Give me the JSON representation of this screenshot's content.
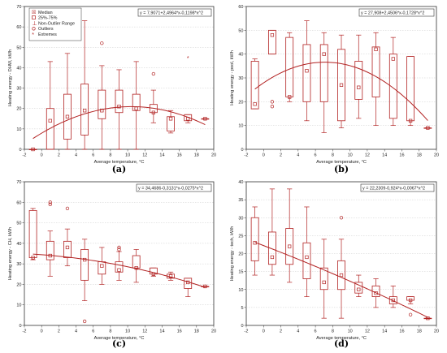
{
  "chart_data": [
    {
      "type": "box",
      "panel_label": "(a)",
      "xlabel": "Average temperature, °C",
      "ylabel": "Heating energy - DHW, kWh",
      "xlim": [
        -2,
        20
      ],
      "ylim": [
        0,
        70
      ],
      "xticks": [
        -2,
        0,
        2,
        4,
        6,
        8,
        10,
        12,
        14,
        16,
        18,
        20
      ],
      "yticks": [
        0,
        10,
        20,
        30,
        40,
        50,
        60,
        70
      ],
      "equation": "y = 7,9071+2,4964*x-0,1198*x^2",
      "fit": {
        "a": 7.9071,
        "b": 2.4964,
        "c": -0.1198,
        "x_range": [
          -1,
          19
        ]
      },
      "legend": [
        "Median",
        "25%-75%",
        "Non-Outlier Range",
        "Outliers",
        "Extremes"
      ],
      "boxes": [
        {
          "x": -1,
          "min": 0,
          "q1": 0,
          "median": 0,
          "q3": 0,
          "max": 0
        },
        {
          "x": 1,
          "min": 0,
          "q1": 0,
          "median": 14,
          "q3": 20,
          "max": 43
        },
        {
          "x": 3,
          "min": 0,
          "q1": 5,
          "median": 16,
          "q3": 27,
          "max": 47
        },
        {
          "x": 5,
          "min": 0,
          "q1": 7,
          "median": 19,
          "q3": 32,
          "max": 63
        },
        {
          "x": 7,
          "min": 0,
          "q1": 15,
          "median": 19,
          "q3": 29,
          "max": 41,
          "outliers": [
            52
          ]
        },
        {
          "x": 9,
          "min": 0,
          "q1": 18,
          "median": 21,
          "q3": 29,
          "max": 39
        },
        {
          "x": 11,
          "min": 0,
          "q1": 19,
          "median": 20,
          "q3": 27,
          "max": 43
        },
        {
          "x": 13,
          "min": 13,
          "q1": 18,
          "median": 18,
          "q3": 22,
          "max": 29,
          "outliers": [
            37
          ]
        },
        {
          "x": 15,
          "min": 8,
          "q1": 9,
          "median": 15,
          "q3": 16,
          "max": 19
        },
        {
          "x": 17,
          "min": 13,
          "q1": 14,
          "median": 15,
          "q3": 17,
          "max": 17,
          "extremes": [
            45
          ]
        },
        {
          "x": 19,
          "min": 15,
          "q1": 15,
          "median": 15,
          "q3": 15,
          "max": 15
        }
      ]
    },
    {
      "type": "box",
      "panel_label": "(b)",
      "xlabel": "Average temperature, °C",
      "ylabel": "Heating energy - pool, kWh",
      "xlim": [
        -2,
        20
      ],
      "ylim": [
        0,
        60
      ],
      "xticks": [
        -2,
        0,
        2,
        4,
        6,
        8,
        10,
        12,
        14,
        16,
        18,
        20
      ],
      "yticks": [
        0,
        10,
        20,
        30,
        40,
        50,
        60
      ],
      "equation": "y = 27,908+2,4506*x-0,1728*x^2",
      "fit": {
        "a": 27.908,
        "b": 2.4506,
        "c": -0.1728,
        "x_range": [
          -1,
          19
        ]
      },
      "boxes": [
        {
          "x": -1,
          "min": 17,
          "q1": 17,
          "median": 19,
          "q3": 37,
          "max": 38
        },
        {
          "x": 1,
          "min": 40,
          "q1": 40,
          "median": 48,
          "q3": 50,
          "max": 50,
          "outliers": [
            20,
            18
          ]
        },
        {
          "x": 3,
          "min": 20,
          "q1": 22,
          "median": 22,
          "q3": 47,
          "max": 49
        },
        {
          "x": 5,
          "min": 12,
          "q1": 20,
          "median": 33,
          "q3": 44,
          "max": 54
        },
        {
          "x": 7,
          "min": 7,
          "q1": 20,
          "median": 40,
          "q3": 44,
          "max": 49
        },
        {
          "x": 9,
          "min": 9,
          "q1": 12,
          "median": 27,
          "q3": 42,
          "max": 48
        },
        {
          "x": 11,
          "min": 13,
          "q1": 21,
          "median": 26,
          "q3": 37,
          "max": 48
        },
        {
          "x": 13,
          "min": 10,
          "q1": 22,
          "median": 42,
          "q3": 43,
          "max": 49
        },
        {
          "x": 15,
          "min": 10,
          "q1": 13,
          "median": 38,
          "q3": 40,
          "max": 47
        },
        {
          "x": 17,
          "min": 10,
          "q1": 12,
          "median": 12,
          "q3": 39,
          "max": 39
        },
        {
          "x": 19,
          "min": 9,
          "q1": 9,
          "median": 9,
          "q3": 9,
          "max": 9
        }
      ]
    },
    {
      "type": "box",
      "panel_label": "(c)",
      "xlabel": "Average temperature, °C",
      "ylabel": "Heating energy - CH, kWh",
      "xlim": [
        -2,
        20
      ],
      "ylim": [
        0,
        70
      ],
      "xticks": [
        -2,
        0,
        2,
        4,
        6,
        8,
        10,
        12,
        14,
        16,
        18,
        20
      ],
      "yticks": [
        0,
        10,
        20,
        30,
        40,
        50,
        60,
        70
      ],
      "equation": "y = 34,4686-0,3131*x-0,0275*x^2",
      "fit": {
        "a": 34.4686,
        "b": -0.3131,
        "c": -0.0275,
        "x_range": [
          -1,
          19
        ]
      },
      "boxes": [
        {
          "x": -1,
          "min": 32,
          "q1": 33,
          "median": 33,
          "q3": 56,
          "max": 57
        },
        {
          "x": 1,
          "min": 24,
          "q1": 32,
          "median": 34,
          "q3": 41,
          "max": 46,
          "outliers": [
            59,
            60
          ]
        },
        {
          "x": 3,
          "min": 29,
          "q1": 33,
          "median": 38,
          "q3": 41,
          "max": 47,
          "outliers": [
            57
          ]
        },
        {
          "x": 5,
          "min": 12,
          "q1": 22,
          "median": 32,
          "q3": 37,
          "max": 42,
          "outliers": [
            2
          ]
        },
        {
          "x": 7,
          "min": 20,
          "q1": 25,
          "median": 29,
          "q3": 31,
          "max": 38
        },
        {
          "x": 9,
          "min": 22,
          "q1": 26,
          "median": 27,
          "q3": 31,
          "max": 36,
          "outliers": [
            38,
            37
          ]
        },
        {
          "x": 11,
          "min": 21,
          "q1": 28,
          "median": 28,
          "q3": 34,
          "max": 37
        },
        {
          "x": 13,
          "min": 24,
          "q1": 25,
          "median": 25,
          "q3": 28,
          "max": 28
        },
        {
          "x": 15,
          "min": 22,
          "q1": 23,
          "median": 24,
          "q3": 25,
          "max": 26
        },
        {
          "x": 17,
          "min": 14,
          "q1": 18,
          "median": 21,
          "q3": 23,
          "max": 23
        },
        {
          "x": 19,
          "min": 19,
          "q1": 19,
          "median": 19,
          "q3": 19,
          "max": 19
        }
      ]
    },
    {
      "type": "box",
      "panel_label": "(d)",
      "xlabel": "Average temperature, °C",
      "ylabel": "Heating energy - tech, kWh",
      "xlim": [
        -2,
        20
      ],
      "ylim": [
        0,
        40
      ],
      "xticks": [
        -2,
        0,
        2,
        4,
        6,
        8,
        10,
        12,
        14,
        16,
        18,
        20
      ],
      "yticks": [
        0,
        5,
        10,
        15,
        20,
        25,
        30,
        35,
        40
      ],
      "equation": "y = 22,2309-0,924*x-0,0067*x^2",
      "fit": {
        "a": 22.2309,
        "b": -0.924,
        "c": -0.0067,
        "x_range": [
          -1,
          19
        ]
      },
      "boxes": [
        {
          "x": -1,
          "min": 14,
          "q1": 18,
          "median": 23,
          "q3": 30,
          "max": 33
        },
        {
          "x": 1,
          "min": 14,
          "q1": 17,
          "median": 19,
          "q3": 26,
          "max": 38
        },
        {
          "x": 3,
          "min": 12,
          "q1": 17,
          "median": 22,
          "q3": 27,
          "max": 38
        },
        {
          "x": 5,
          "min": 8,
          "q1": 13,
          "median": 19,
          "q3": 23,
          "max": 33
        },
        {
          "x": 7,
          "min": 2,
          "q1": 10,
          "median": 12,
          "q3": 16,
          "max": 24
        },
        {
          "x": 9,
          "min": 2,
          "q1": 10,
          "median": 14,
          "q3": 18,
          "max": 24,
          "outliers": [
            30
          ]
        },
        {
          "x": 11,
          "min": 8,
          "q1": 9,
          "median": 10,
          "q3": 12,
          "max": 14
        },
        {
          "x": 13,
          "min": 5,
          "q1": 8,
          "median": 9,
          "q3": 11,
          "max": 13
        },
        {
          "x": 15,
          "min": 5,
          "q1": 6,
          "median": 7,
          "q3": 8,
          "max": 11
        },
        {
          "x": 17,
          "min": 6,
          "q1": 7,
          "median": 7,
          "q3": 8,
          "max": 8,
          "outliers": [
            3
          ]
        },
        {
          "x": 19,
          "min": 2,
          "q1": 2,
          "median": 2,
          "q3": 2,
          "max": 2
        }
      ]
    }
  ]
}
